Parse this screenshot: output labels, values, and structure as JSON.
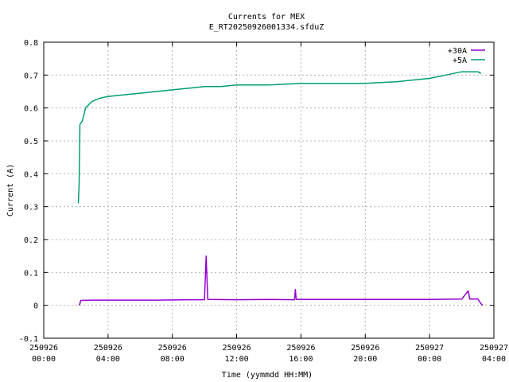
{
  "chart_data": {
    "type": "line",
    "title": "Currents for MEX",
    "subtitle": "E_RT20250926001334.sfduZ",
    "xlabel": "Time (yymmdd HH:MM)",
    "ylabel": "Current (A)",
    "ylim": [
      -0.1,
      0.8
    ],
    "xlim_hours": [
      0,
      28
    ],
    "grid": true,
    "legend_position": "top-right",
    "y_ticks": [
      "-0.1",
      "0",
      "0.1",
      "0.2",
      "0.3",
      "0.4",
      "0.5",
      "0.6",
      "0.7",
      "0.8"
    ],
    "x_ticks": [
      {
        "date": "250926",
        "time": "00:00"
      },
      {
        "date": "250926",
        "time": "04:00"
      },
      {
        "date": "250926",
        "time": "08:00"
      },
      {
        "date": "250926",
        "time": "12:00"
      },
      {
        "date": "250926",
        "time": "16:00"
      },
      {
        "date": "250926",
        "time": "20:00"
      },
      {
        "date": "250927",
        "time": "00:00"
      },
      {
        "date": "250927",
        "time": "04:00"
      }
    ],
    "series": [
      {
        "name": "+30A",
        "color": "#9400d3",
        "points": [
          [
            2.2,
            0.0
          ],
          [
            2.25,
            0.005
          ],
          [
            2.3,
            0.015
          ],
          [
            3.0,
            0.016
          ],
          [
            5.0,
            0.016
          ],
          [
            7.0,
            0.016
          ],
          [
            9.0,
            0.017
          ],
          [
            10.0,
            0.017
          ],
          [
            10.1,
            0.15
          ],
          [
            10.2,
            0.018
          ],
          [
            12.0,
            0.017
          ],
          [
            14.0,
            0.018
          ],
          [
            15.6,
            0.017
          ],
          [
            15.65,
            0.048
          ],
          [
            15.7,
            0.018
          ],
          [
            18.0,
            0.018
          ],
          [
            20.0,
            0.018
          ],
          [
            22.0,
            0.018
          ],
          [
            24.0,
            0.018
          ],
          [
            26.0,
            0.019
          ],
          [
            26.4,
            0.044
          ],
          [
            26.5,
            0.019
          ],
          [
            27.0,
            0.019
          ],
          [
            27.2,
            0.005
          ],
          [
            27.3,
            0.0
          ]
        ]
      },
      {
        "name": "+5A",
        "color": "#009e73",
        "points": [
          [
            2.15,
            0.31
          ],
          [
            2.2,
            0.37
          ],
          [
            2.25,
            0.55
          ],
          [
            2.4,
            0.56
          ],
          [
            2.6,
            0.6
          ],
          [
            3.0,
            0.62
          ],
          [
            3.5,
            0.63
          ],
          [
            4.0,
            0.635
          ],
          [
            5.0,
            0.64
          ],
          [
            6.0,
            0.645
          ],
          [
            7.0,
            0.65
          ],
          [
            8.0,
            0.655
          ],
          [
            9.0,
            0.66
          ],
          [
            10.0,
            0.665
          ],
          [
            11.0,
            0.665
          ],
          [
            12.0,
            0.67
          ],
          [
            14.0,
            0.67
          ],
          [
            16.0,
            0.675
          ],
          [
            18.0,
            0.675
          ],
          [
            20.0,
            0.675
          ],
          [
            22.0,
            0.68
          ],
          [
            23.0,
            0.685
          ],
          [
            24.0,
            0.69
          ],
          [
            25.0,
            0.7
          ],
          [
            26.0,
            0.71
          ],
          [
            27.0,
            0.71
          ],
          [
            27.2,
            0.705
          ]
        ]
      }
    ]
  }
}
